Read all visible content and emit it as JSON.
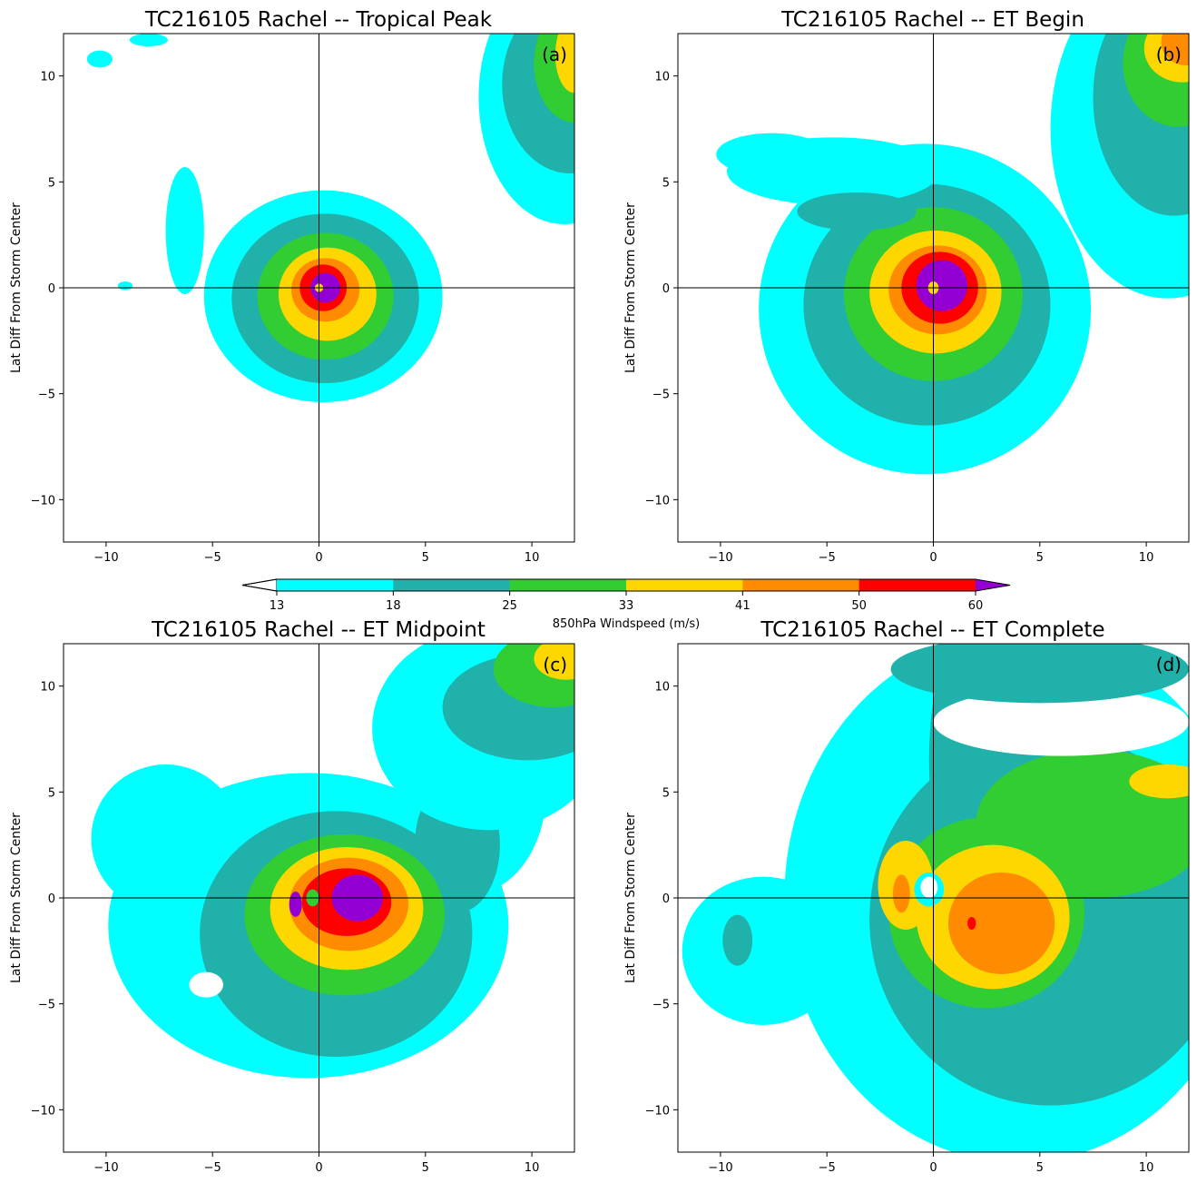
{
  "chart_data": {
    "type": "contour",
    "variable": "850hPa Windspeed (m/s)",
    "colorbar": {
      "label": "850hPa Windspeed (m/s)",
      "levels": [
        13,
        18,
        25,
        33,
        41,
        50,
        60
      ],
      "colors": [
        "#00ffff",
        "#20b2aa",
        "#32cd32",
        "#ffd700",
        "#ff8c00",
        "#ff0000",
        "#9400d3"
      ],
      "extend": "both"
    },
    "axes": {
      "xlim": [
        -12,
        12
      ],
      "ylim": [
        -12,
        12
      ],
      "ticks": [
        -10,
        -5,
        0,
        5,
        10
      ],
      "ylabel": "Lat Diff From Storm Center"
    },
    "panels": [
      {
        "id": "a",
        "label": "(a)",
        "title": "TC216105 Rachel -- Tropical Peak",
        "features": [
          {
            "cx": 0.2,
            "cy": -0.4,
            "rx": 5.6,
            "ry": 5.0,
            "level": 13
          },
          {
            "cx": 0.3,
            "cy": -0.5,
            "rx": 4.4,
            "ry": 4.0,
            "level": 18
          },
          {
            "cx": 0.3,
            "cy": -0.4,
            "rx": 3.2,
            "ry": 3.0,
            "level": 25
          },
          {
            "cx": 0.4,
            "cy": -0.3,
            "rx": 2.3,
            "ry": 2.2,
            "level": 33
          },
          {
            "cx": 0.3,
            "cy": -0.1,
            "rx": 1.6,
            "ry": 1.5,
            "level": 41
          },
          {
            "cx": 0.2,
            "cy": 0.0,
            "rx": 1.1,
            "ry": 1.1,
            "level": 50
          },
          {
            "cx": 0.3,
            "cy": 0.0,
            "rx": 0.7,
            "ry": 0.7,
            "level": 60
          },
          {
            "cx": 0.0,
            "cy": 0.0,
            "rx": 0.2,
            "ry": 0.2,
            "level": 33
          },
          {
            "cx": -6.3,
            "cy": 2.7,
            "rx": 0.9,
            "ry": 3.0,
            "level": 13
          },
          {
            "cx": -9.1,
            "cy": 0.1,
            "rx": 0.35,
            "ry": 0.2,
            "level": 13
          },
          {
            "cx": -10.3,
            "cy": 10.8,
            "rx": 0.6,
            "ry": 0.4,
            "level": 13
          },
          {
            "cx": -8.0,
            "cy": 11.7,
            "rx": 0.9,
            "ry": 0.3,
            "level": 13
          },
          {
            "cx": 11.5,
            "cy": 9.0,
            "rx": 4.0,
            "ry": 6.0,
            "level": 13
          },
          {
            "cx": 11.8,
            "cy": 9.6,
            "rx": 3.2,
            "ry": 4.2,
            "level": 18
          },
          {
            "cx": 12.0,
            "cy": 10.6,
            "rx": 1.9,
            "ry": 2.8,
            "level": 25
          },
          {
            "cx": 12.0,
            "cy": 11.0,
            "rx": 0.9,
            "ry": 1.8,
            "level": 33
          }
        ]
      },
      {
        "id": "b",
        "label": "(b)",
        "title": "TC216105 Rachel -- ET Begin",
        "features": [
          {
            "cx": -0.4,
            "cy": -1.0,
            "rx": 7.8,
            "ry": 7.8,
            "level": 13
          },
          {
            "cx": -0.3,
            "cy": -0.8,
            "rx": 5.8,
            "ry": 5.7,
            "level": 18
          },
          {
            "cx": 0.0,
            "cy": -0.3,
            "rx": 4.2,
            "ry": 4.1,
            "level": 25
          },
          {
            "cx": 0.1,
            "cy": -0.2,
            "rx": 3.1,
            "ry": 2.9,
            "level": 33
          },
          {
            "cx": 0.2,
            "cy": -0.1,
            "rx": 2.3,
            "ry": 2.1,
            "level": 41
          },
          {
            "cx": 0.3,
            "cy": 0.0,
            "rx": 1.8,
            "ry": 1.7,
            "level": 50
          },
          {
            "cx": 0.4,
            "cy": 0.1,
            "rx": 1.2,
            "ry": 1.2,
            "level": 60
          },
          {
            "cx": 0.0,
            "cy": 0.0,
            "rx": 0.25,
            "ry": 0.3,
            "level": 33
          },
          {
            "cx": -4.7,
            "cy": 5.5,
            "rx": 5.0,
            "ry": 1.6,
            "level": 13
          },
          {
            "cx": -7.6,
            "cy": 6.3,
            "rx": 2.6,
            "ry": 1.0,
            "level": 13
          },
          {
            "cx": -3.6,
            "cy": 3.6,
            "rx": 2.8,
            "ry": 0.9,
            "level": 18
          },
          {
            "cx": 11.0,
            "cy": 7.5,
            "rx": 5.5,
            "ry": 8.0,
            "level": 13
          },
          {
            "cx": 11.3,
            "cy": 9.0,
            "rx": 3.8,
            "ry": 5.6,
            "level": 18
          },
          {
            "cx": 11.5,
            "cy": 10.6,
            "rx": 2.6,
            "ry": 3.0,
            "level": 25
          },
          {
            "cx": 11.7,
            "cy": 11.3,
            "rx": 1.8,
            "ry": 1.6,
            "level": 33
          },
          {
            "cx": 11.9,
            "cy": 11.6,
            "rx": 1.2,
            "ry": 1.1,
            "level": 41
          }
        ]
      },
      {
        "id": "c",
        "label": "(c)",
        "title": "TC216105 Rachel -- ET Midpoint",
        "features": [
          {
            "cx": -0.5,
            "cy": -1.3,
            "rx": 9.4,
            "ry": 7.2,
            "level": 13
          },
          {
            "cx": -7.2,
            "cy": 2.8,
            "rx": 3.5,
            "ry": 3.5,
            "level": 13
          },
          {
            "cx": 7.2,
            "cy": 5.2,
            "rx": 3.5,
            "ry": 5.0,
            "level": 13
          },
          {
            "cx": 0.8,
            "cy": -1.7,
            "rx": 6.4,
            "ry": 5.8,
            "level": 18
          },
          {
            "cx": 6.5,
            "cy": 2.5,
            "rx": 2.0,
            "ry": 3.2,
            "level": 18
          },
          {
            "cx": 1.2,
            "cy": -0.8,
            "rx": 4.7,
            "ry": 3.8,
            "level": 25
          },
          {
            "cx": 1.3,
            "cy": -0.5,
            "rx": 3.6,
            "ry": 2.9,
            "level": 33
          },
          {
            "cx": 1.4,
            "cy": -0.3,
            "rx": 2.8,
            "ry": 2.2,
            "level": 41
          },
          {
            "cx": 1.3,
            "cy": -0.2,
            "rx": 2.1,
            "ry": 1.6,
            "level": 50
          },
          {
            "cx": 1.8,
            "cy": 0.0,
            "rx": 1.2,
            "ry": 1.1,
            "level": 60
          },
          {
            "cx": -1.1,
            "cy": -0.3,
            "rx": 0.3,
            "ry": 0.6,
            "level": 60
          },
          {
            "cx": -0.3,
            "cy": 0.0,
            "rx": 0.3,
            "ry": 0.4,
            "level": 25
          },
          {
            "cx": -5.3,
            "cy": -4.1,
            "rx": 0.8,
            "ry": 0.6,
            "level": 0
          },
          {
            "cx": 8.0,
            "cy": 8.0,
            "rx": 5.5,
            "ry": 4.8,
            "level": 13
          },
          {
            "cx": 9.8,
            "cy": 9.0,
            "rx": 4.0,
            "ry": 2.5,
            "level": 18
          },
          {
            "cx": 11.0,
            "cy": 10.8,
            "rx": 2.8,
            "ry": 1.8,
            "level": 25
          },
          {
            "cx": 11.6,
            "cy": 11.3,
            "rx": 1.5,
            "ry": 1.0,
            "level": 33
          }
        ]
      },
      {
        "id": "d",
        "label": "(d)",
        "title": "TC216105 Rachel -- ET Complete",
        "features": [
          {
            "cx": 4.0,
            "cy": 0.0,
            "rx": 11.0,
            "ry": 12.5,
            "level": 13
          },
          {
            "cx": -8.0,
            "cy": -2.5,
            "rx": 3.8,
            "ry": 3.5,
            "level": 13
          },
          {
            "cx": 5.5,
            "cy": -1.0,
            "rx": 8.5,
            "ry": 8.8,
            "level": 18
          },
          {
            "cx": 1.2,
            "cy": 6.5,
            "rx": 1.4,
            "ry": 5.5,
            "level": 18
          },
          {
            "cx": 7.5,
            "cy": 3.5,
            "rx": 5.5,
            "ry": 3.5,
            "level": 25
          },
          {
            "cx": 2.5,
            "cy": -0.7,
            "rx": 4.6,
            "ry": 4.5,
            "level": 25
          },
          {
            "cx": 2.8,
            "cy": -0.9,
            "rx": 3.6,
            "ry": 3.4,
            "level": 33
          },
          {
            "cx": -1.3,
            "cy": 0.6,
            "rx": 1.3,
            "ry": 2.1,
            "level": 33
          },
          {
            "cx": 11.0,
            "cy": 5.5,
            "rx": 1.8,
            "ry": 0.8,
            "level": 33
          },
          {
            "cx": 3.2,
            "cy": -1.2,
            "rx": 2.5,
            "ry": 2.4,
            "level": 41
          },
          {
            "cx": -1.5,
            "cy": 0.2,
            "rx": 0.4,
            "ry": 0.9,
            "level": 41
          },
          {
            "cx": 1.8,
            "cy": -1.2,
            "rx": 0.2,
            "ry": 0.3,
            "level": 50
          },
          {
            "cx": -0.2,
            "cy": 0.4,
            "rx": 0.7,
            "ry": 0.8,
            "level": 13
          },
          {
            "cx": -0.2,
            "cy": 0.5,
            "rx": 0.4,
            "ry": 0.5,
            "level": 0
          },
          {
            "cx": 6.0,
            "cy": 8.3,
            "rx": 6.0,
            "ry": 1.6,
            "level": 0
          },
          {
            "cx": 5.0,
            "cy": 10.8,
            "rx": 7.0,
            "ry": 1.6,
            "level": 18
          },
          {
            "cx": -9.2,
            "cy": -2.0,
            "rx": 0.7,
            "ry": 1.2,
            "level": 18
          }
        ]
      }
    ]
  }
}
